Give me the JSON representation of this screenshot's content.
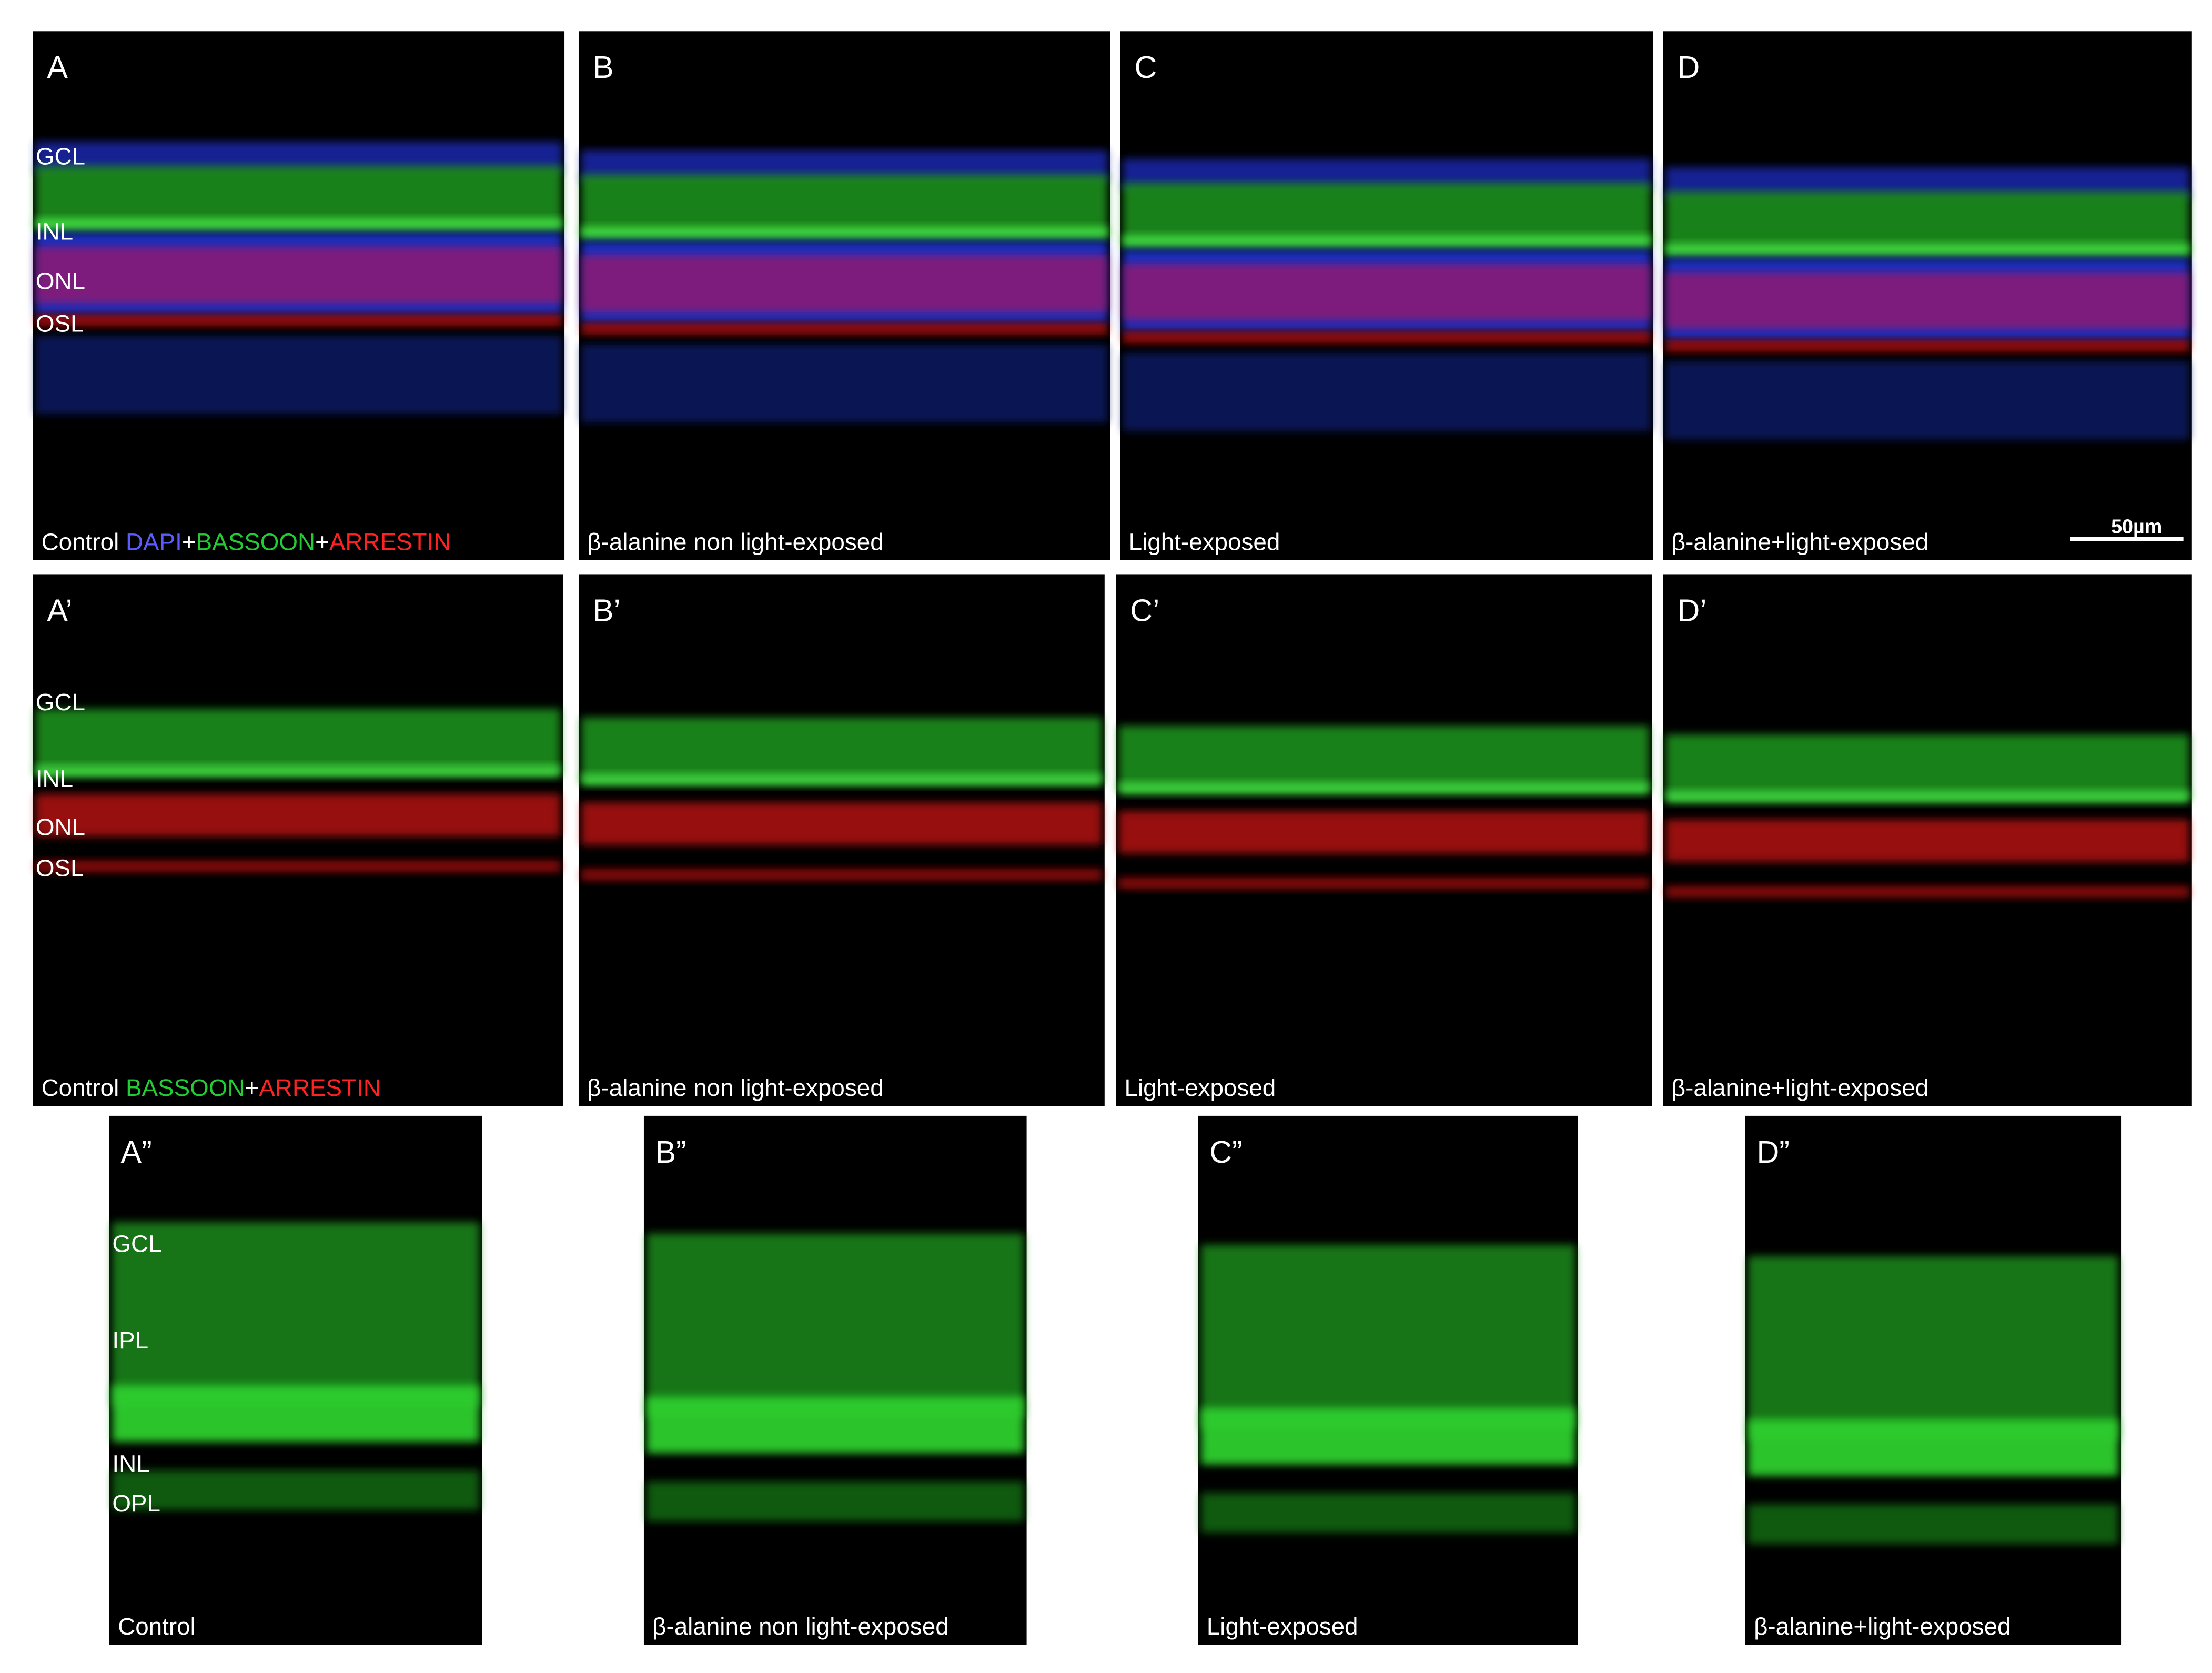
{
  "rows": [
    {
      "panels": [
        {
          "letter": "A",
          "caption": [
            {
              "text": "Control "
            },
            {
              "text": "DAPI",
              "color": "#5a5cff"
            },
            {
              "text": "+"
            },
            {
              "text": "BASSOON",
              "color": "#22cc33"
            },
            {
              "text": "+"
            },
            {
              "text": "ARRESTIN",
              "color": "#ff2222"
            }
          ],
          "layers": [
            "GCL",
            "INL",
            "ONL",
            "OSL"
          ]
        },
        {
          "letter": "B",
          "caption": [
            {
              "text": "β-alanine non light-exposed"
            }
          ]
        },
        {
          "letter": "C",
          "caption": [
            {
              "text": "Light-exposed"
            }
          ]
        },
        {
          "letter": "D",
          "caption": [
            {
              "text": "β-alanine+light-exposed"
            }
          ]
        }
      ]
    },
    {
      "panels": [
        {
          "letter": "A’",
          "caption": [
            {
              "text": "Control "
            },
            {
              "text": "BASSOON",
              "color": "#22cc33"
            },
            {
              "text": "+"
            },
            {
              "text": "ARRESTIN",
              "color": "#ff2222"
            }
          ],
          "layers": [
            "GCL",
            "INL",
            "ONL",
            "OSL"
          ]
        },
        {
          "letter": "B’",
          "caption": [
            {
              "text": "β-alanine non light-exposed"
            }
          ]
        },
        {
          "letter": "C’",
          "caption": [
            {
              "text": "Light-exposed"
            }
          ]
        },
        {
          "letter": "D’",
          "caption": [
            {
              "text": "β-alanine+light-exposed"
            }
          ]
        }
      ]
    },
    {
      "panels": [
        {
          "letter": "A”",
          "caption": [
            {
              "text": "Control"
            }
          ],
          "layers": [
            "GCL",
            "IPL",
            "INL",
            "OPL"
          ]
        },
        {
          "letter": "B”",
          "caption": [
            {
              "text": "β-alanine non light-exposed"
            }
          ]
        },
        {
          "letter": "C”",
          "caption": [
            {
              "text": "Light-exposed"
            }
          ]
        },
        {
          "letter": "D”",
          "caption": [
            {
              "text": "β-alanine+light-exposed"
            }
          ]
        }
      ]
    }
  ],
  "scale_bar": "50µm"
}
